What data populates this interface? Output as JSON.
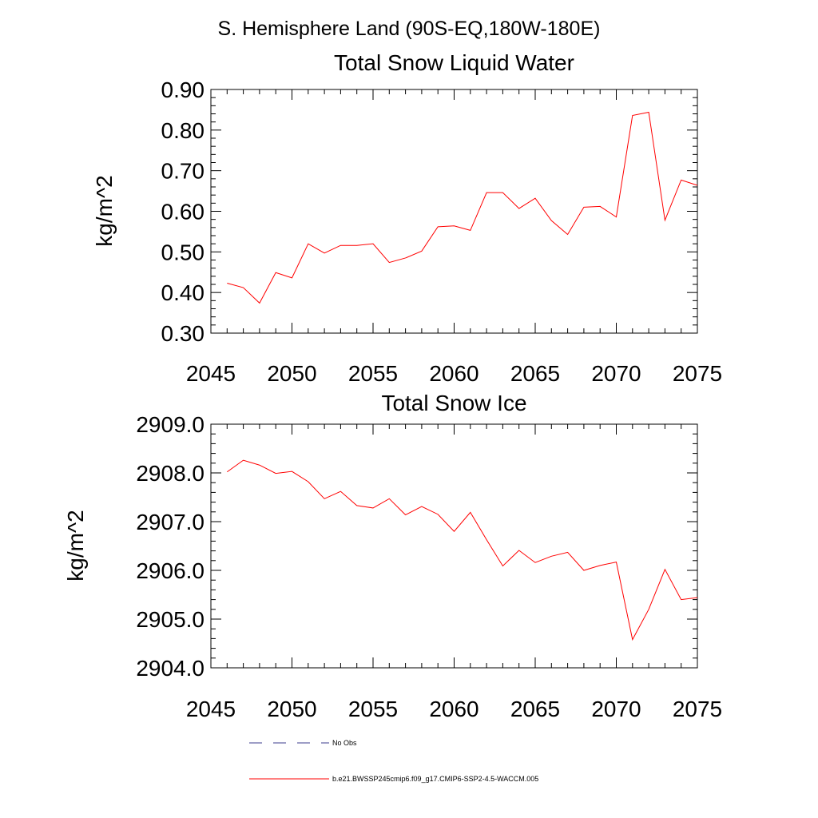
{
  "figure": {
    "main_title": "S. Hemisphere Land (90S-EQ,180W-180E)"
  },
  "colors": {
    "series": "#ff0000",
    "obs": "#3d3d8c",
    "axis": "#000000",
    "background": "#ffffff"
  },
  "chart_data": [
    {
      "type": "line",
      "title": "Total Snow Liquid Water",
      "xlabel": "",
      "ylabel": "kg/m^2",
      "xlim": [
        2045,
        2075
      ],
      "ylim": [
        0.3,
        0.9
      ],
      "xticks": [
        2045,
        2050,
        2055,
        2060,
        2065,
        2070,
        2075
      ],
      "xtick_labels": [
        "2045",
        "2050",
        "2055",
        "2060",
        "2065",
        "2070",
        "2075"
      ],
      "yticks": [
        0.3,
        0.4,
        0.5,
        0.6,
        0.7,
        0.8,
        0.9
      ],
      "ytick_labels": [
        "0.30",
        "0.40",
        "0.50",
        "0.60",
        "0.70",
        "0.80",
        "0.90"
      ],
      "grid": false,
      "x": [
        2046,
        2047,
        2048,
        2049,
        2050,
        2051,
        2052,
        2053,
        2054,
        2055,
        2056,
        2057,
        2058,
        2059,
        2060,
        2061,
        2062,
        2063,
        2064,
        2065,
        2066,
        2067,
        2068,
        2069,
        2070,
        2071,
        2072,
        2073,
        2074,
        2075
      ],
      "series": [
        {
          "name": "b.e21.BWSSP245cmip6.f09_g17.CMIP6-SSP2-4.5-WACCM.005",
          "values": [
            0.423,
            0.412,
            0.374,
            0.449,
            0.436,
            0.52,
            0.497,
            0.516,
            0.516,
            0.52,
            0.474,
            0.485,
            0.502,
            0.562,
            0.564,
            0.553,
            0.646,
            0.646,
            0.607,
            0.632,
            0.577,
            0.543,
            0.61,
            0.612,
            0.586,
            0.836,
            0.844,
            0.578,
            0.677,
            0.664
          ]
        }
      ]
    },
    {
      "type": "line",
      "title": "Total Snow Ice",
      "xlabel": "",
      "ylabel": "kg/m^2",
      "xlim": [
        2045,
        2075
      ],
      "ylim": [
        2904.0,
        2909.0
      ],
      "xticks": [
        2045,
        2050,
        2055,
        2060,
        2065,
        2070,
        2075
      ],
      "xtick_labels": [
        "2045",
        "2050",
        "2055",
        "2060",
        "2065",
        "2070",
        "2075"
      ],
      "yticks": [
        2904.0,
        2905.0,
        2906.0,
        2907.0,
        2908.0,
        2909.0
      ],
      "ytick_labels": [
        "2904.0",
        "2905.0",
        "2906.0",
        "2907.0",
        "2908.0",
        "2909.0"
      ],
      "grid": false,
      "x": [
        2046,
        2047,
        2048,
        2049,
        2050,
        2051,
        2052,
        2053,
        2054,
        2055,
        2056,
        2057,
        2058,
        2059,
        2060,
        2061,
        2062,
        2063,
        2064,
        2065,
        2066,
        2067,
        2068,
        2069,
        2070,
        2071,
        2072,
        2073,
        2074,
        2075
      ],
      "series": [
        {
          "name": "b.e21.BWSSP245cmip6.f09_g17.CMIP6-SSP2-4.5-WACCM.005",
          "values": [
            2908.02,
            2908.26,
            2908.16,
            2907.99,
            2908.03,
            2907.82,
            2907.47,
            2907.62,
            2907.33,
            2907.28,
            2907.47,
            2907.14,
            2907.31,
            2907.15,
            2906.8,
            2907.19,
            2906.63,
            2906.09,
            2906.41,
            2906.16,
            2906.29,
            2906.37,
            2906.0,
            2906.1,
            2906.17,
            2904.58,
            2905.2,
            2906.02,
            2905.4,
            2905.44
          ]
        }
      ]
    }
  ],
  "legend": {
    "items": [
      {
        "label": "No Obs",
        "style": "dashed",
        "color_key": "obs"
      },
      {
        "label": "b.e21.BWSSP245cmip6.f09_g17.CMIP6-SSP2-4.5-WACCM.005",
        "style": "solid",
        "color_key": "series"
      }
    ]
  }
}
